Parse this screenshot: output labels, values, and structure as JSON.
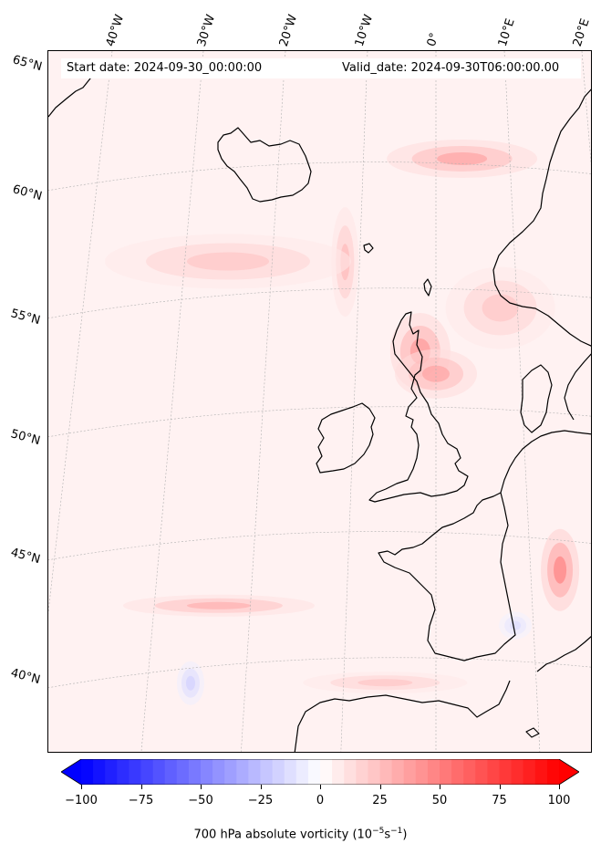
{
  "header": {
    "start_date": "Start date: 2024-09-30_00:00:00",
    "valid_date": "Valid_date: 2024-09-30T06:00:00.00"
  },
  "longitude_labels": [
    "40°W",
    "30°W",
    "20°W",
    "10°W",
    "0°",
    "10°E",
    "20°E"
  ],
  "latitude_labels": [
    "65°N",
    "60°N",
    "55°N",
    "50°N",
    "45°N",
    "40°N"
  ],
  "colorbar": {
    "ticks": [
      "−100",
      "−75",
      "−50",
      "−25",
      "0",
      "25",
      "50",
      "75",
      "100"
    ],
    "label": "700 hPa absolute vorticity (10",
    "label_exp1": "−5",
    "label_mid": "s",
    "label_exp2": "−1",
    "label_end": ")",
    "min": -100,
    "max": 100,
    "colormap": "bwr",
    "extend": "both"
  },
  "colors": {
    "background_field": "#fff2f2",
    "coastline": "#000000",
    "gridline": "#b0b0b0",
    "positive_max": "#ff0000",
    "negative_max": "#0000ff"
  },
  "field_blobs": [
    {
      "lon": -2,
      "lat": 53.5,
      "value": 45,
      "rx": 22,
      "ry": 28
    },
    {
      "lon": 0,
      "lat": 52.5,
      "value": 40,
      "rx": 30,
      "ry": 18
    },
    {
      "lon": 3,
      "lat": 61.5,
      "value": 40,
      "rx": 55,
      "ry": 14
    },
    {
      "lon": -32,
      "lat": 44.0,
      "value": 35,
      "rx": 70,
      "ry": 8
    },
    {
      "lon": -11,
      "lat": 57.5,
      "value": 30,
      "rx": 10,
      "ry": 40
    },
    {
      "lon": 18,
      "lat": 45.0,
      "value": 55,
      "rx": 14,
      "ry": 30
    },
    {
      "lon": -38,
      "lat": 41.0,
      "value": -20,
      "rx": 10,
      "ry": 16
    },
    {
      "lon": 12,
      "lat": 42.5,
      "value": -15,
      "rx": 12,
      "ry": 10
    },
    {
      "lon": -8,
      "lat": 40.0,
      "value": 25,
      "rx": 60,
      "ry": 8
    },
    {
      "lon": -25,
      "lat": 58.0,
      "value": 25,
      "rx": 90,
      "ry": 20
    },
    {
      "lon": 8,
      "lat": 55.5,
      "value": 25,
      "rx": 40,
      "ry": 30
    }
  ]
}
